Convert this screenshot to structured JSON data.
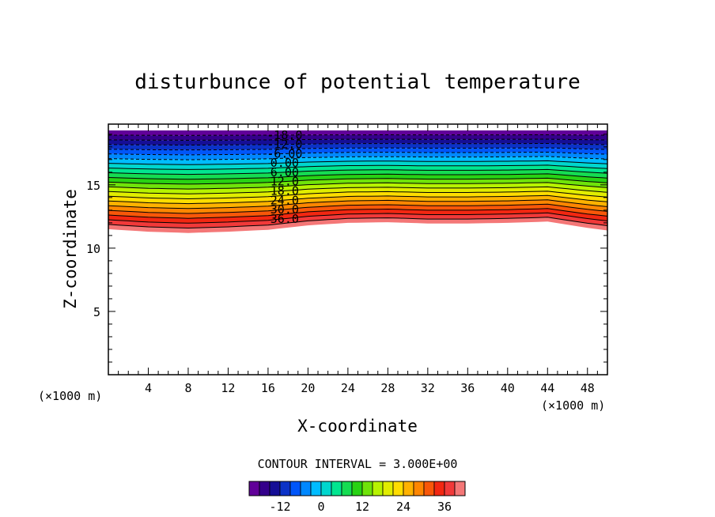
{
  "chart_data": {
    "type": "heatmap",
    "title": "disturbunce of potential temperature",
    "xlabel": "X-coordinate",
    "ylabel": "Z-coordinate",
    "x_unit_left": "(×1000 m)",
    "x_unit_right": "(×1000 m)",
    "xlim": [
      0,
      50
    ],
    "ylim": [
      0,
      19.8
    ],
    "x_ticks": [
      4,
      8,
      12,
      16,
      20,
      24,
      28,
      32,
      36,
      40,
      44,
      48
    ],
    "y_ticks": [
      5,
      10,
      15
    ],
    "field_base_z": {
      "x": [
        0,
        4,
        8,
        12,
        16,
        20,
        24,
        28,
        32,
        36,
        40,
        44,
        48,
        50
      ],
      "z": [
        11.5,
        11.3,
        11.2,
        11.3,
        11.45,
        11.8,
        12.0,
        12.05,
        11.95,
        11.95,
        12.0,
        12.1,
        11.6,
        11.4
      ]
    },
    "contour_interval": 3.0,
    "contour_labels": [
      "-18.0",
      "-12.0",
      "-6.00",
      "0.00",
      "6.00",
      "12.0",
      "18.0",
      "24.0",
      "30.0",
      "36.0"
    ],
    "contour_levels": [
      -18,
      -12,
      -6,
      0,
      6,
      12,
      18,
      24,
      30,
      36
    ],
    "contour_label_x": 17.5,
    "colorbar": {
      "caption": "CONTOUR INTERVAL = 3.000E+00",
      "range": [
        -21,
        42
      ],
      "ticks": [
        "-12",
        "0",
        "12",
        "24",
        "36"
      ],
      "tick_values": [
        -12,
        0,
        12,
        24,
        36
      ]
    }
  }
}
